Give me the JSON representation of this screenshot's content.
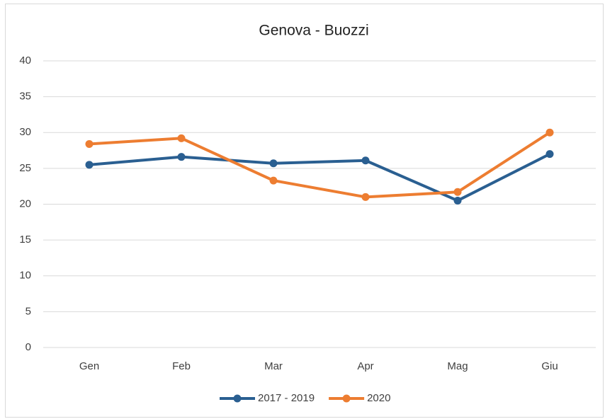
{
  "chart_data": {
    "type": "line",
    "title": "Genova - Buozzi",
    "categories": [
      "Gen",
      "Feb",
      "Mar",
      "Apr",
      "Mag",
      "Giu"
    ],
    "series": [
      {
        "name": "2017 - 2019",
        "color": "#2a5f91",
        "values": [
          25.5,
          26.6,
          25.7,
          26.1,
          20.5,
          27.0
        ]
      },
      {
        "name": "2020",
        "color": "#ed7d31",
        "values": [
          28.4,
          29.2,
          23.3,
          21.0,
          21.7,
          30.0
        ]
      }
    ],
    "ylim": [
      0,
      40
    ],
    "yticks": [
      0,
      5,
      10,
      15,
      20,
      25,
      30,
      35,
      40
    ],
    "grid": true,
    "legend": "bottom"
  }
}
